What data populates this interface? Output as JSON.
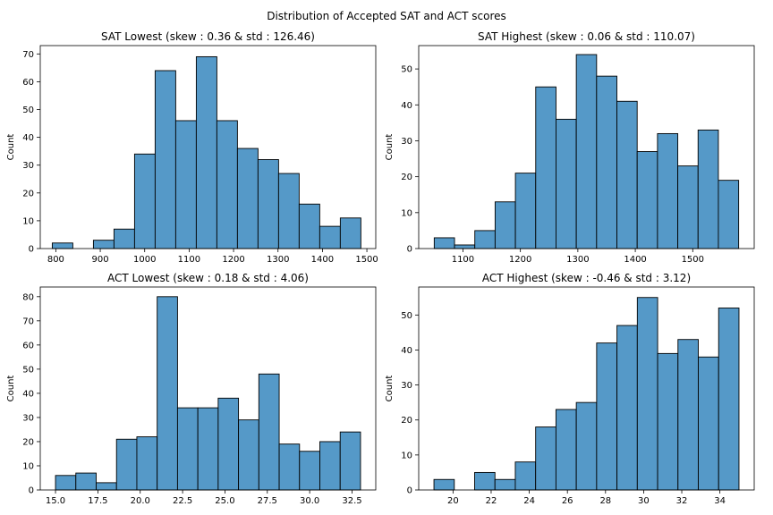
{
  "figure_title": "Distribution of Accepted SAT and ACT scores",
  "chart_data": [
    {
      "type": "bar",
      "title": "SAT Lowest (skew : 0.36 & std : 126.46)",
      "xlabel": "",
      "ylabel": "Count",
      "bin_start": 792,
      "bin_width": 46.3,
      "values": [
        2,
        0,
        3,
        7,
        34,
        64,
        46,
        69,
        46,
        36,
        32,
        27,
        16,
        8,
        11
      ],
      "xlim": [
        765,
        1520
      ],
      "ylim": [
        0,
        73
      ],
      "xticks": [
        800,
        900,
        1000,
        1100,
        1200,
        1300,
        1400,
        1500
      ],
      "yticks": [
        0,
        10,
        20,
        30,
        40,
        50,
        60,
        70
      ]
    },
    {
      "type": "bar",
      "title": "SAT Highest (skew : 0.06 & std : 110.07)",
      "xlabel": "",
      "ylabel": "Count",
      "bin_start": 1050,
      "bin_width": 35.33,
      "values": [
        3,
        1,
        5,
        13,
        21,
        45,
        36,
        54,
        48,
        41,
        27,
        32,
        23,
        33,
        19
      ],
      "xlim": [
        1023,
        1607
      ],
      "ylim": [
        0,
        56.5
      ],
      "xticks": [
        1100,
        1200,
        1300,
        1400,
        1500
      ],
      "yticks": [
        0,
        10,
        20,
        30,
        40,
        50
      ]
    },
    {
      "type": "bar",
      "title": "ACT Lowest (skew : 0.18 & std : 4.06)",
      "xlabel": "",
      "ylabel": "Count",
      "bin_start": 15,
      "bin_width": 1.2,
      "values": [
        6,
        7,
        3,
        21,
        22,
        80,
        34,
        34,
        38,
        29,
        48,
        19,
        16,
        20,
        24
      ],
      "xlim": [
        14.1,
        33.9
      ],
      "ylim": [
        0,
        84
      ],
      "xticks": [
        15.0,
        17.5,
        20.0,
        22.5,
        25.0,
        27.5,
        30.0,
        32.5
      ],
      "yticks": [
        0,
        10,
        20,
        30,
        40,
        50,
        60,
        70,
        80
      ]
    },
    {
      "type": "bar",
      "title": "ACT Highest (skew : -0.46 & std : 3.12)",
      "xlabel": "",
      "ylabel": "Count",
      "bin_start": 19,
      "bin_width": 1.0667,
      "values": [
        3,
        0,
        5,
        3,
        8,
        18,
        23,
        25,
        42,
        47,
        55,
        39,
        43,
        38,
        52
      ],
      "xlim": [
        18.2,
        35.8
      ],
      "ylim": [
        0,
        58
      ],
      "xticks": [
        20,
        22,
        24,
        26,
        28,
        30,
        32,
        34
      ],
      "yticks": [
        0,
        10,
        20,
        30,
        40,
        50
      ]
    }
  ]
}
